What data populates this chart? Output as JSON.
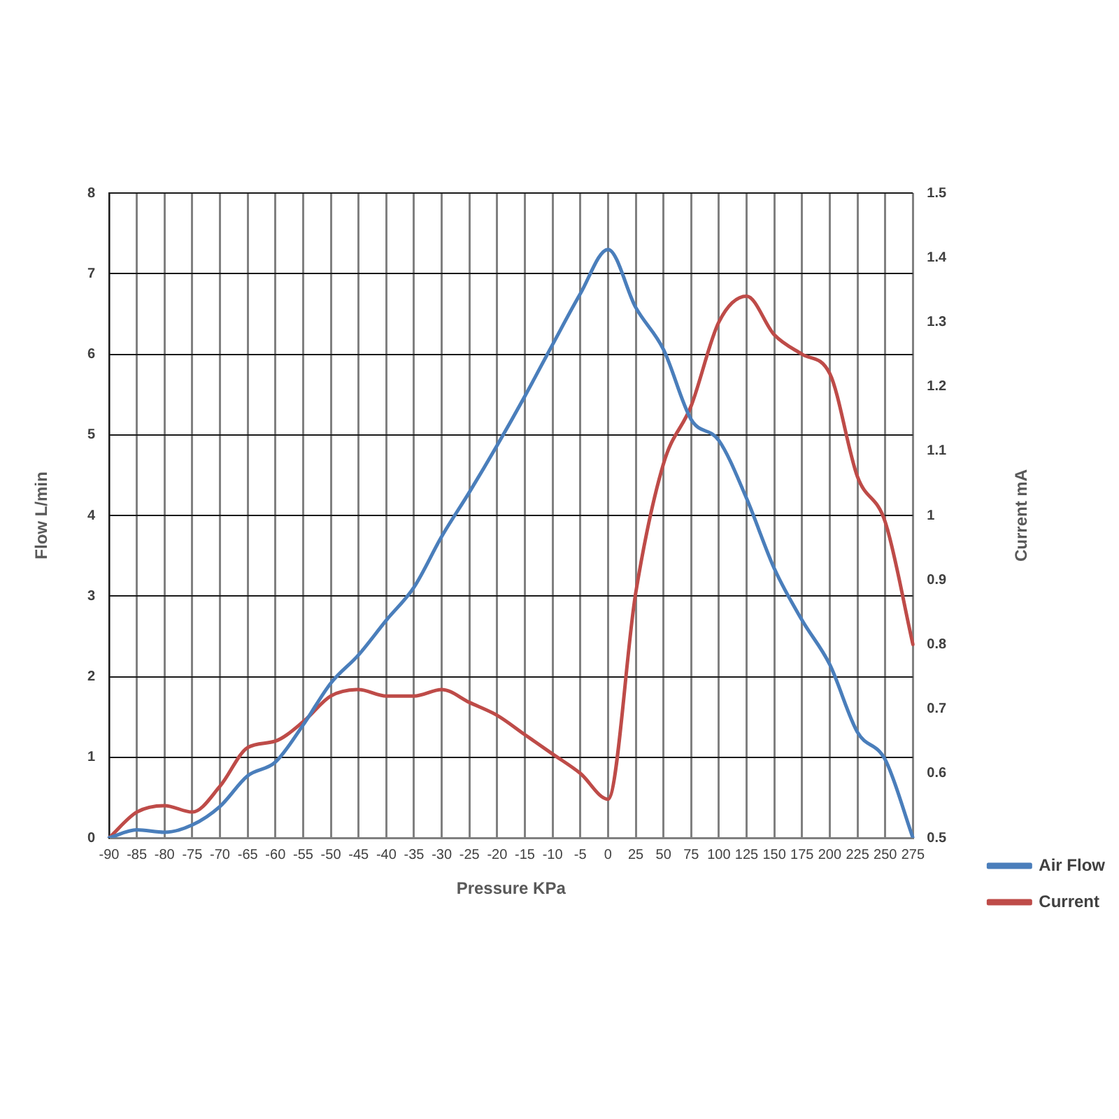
{
  "chart_data": {
    "type": "line",
    "xlabel": "Pressure KPa",
    "ylabel": "Flow L/min",
    "y2label": "Current mA",
    "categories": [
      "-90",
      "-85",
      "-80",
      "-75",
      "-70",
      "-65",
      "-60",
      "-55",
      "-50",
      "-45",
      "-40",
      "-35",
      "-30",
      "-25",
      "-20",
      "-15",
      "-10",
      "-5",
      "0",
      "25",
      "50",
      "75",
      "100",
      "125",
      "150",
      "175",
      "200",
      "225",
      "250",
      "275"
    ],
    "series": [
      {
        "name": "Air Flow",
        "color": "#4a7ebb",
        "values": [
          0,
          0.1,
          0.07,
          0.16,
          0.39,
          0.77,
          0.94,
          1.4,
          1.92,
          2.27,
          2.7,
          3.11,
          3.74,
          4.29,
          4.87,
          5.48,
          6.12,
          6.75,
          7.3,
          6.58,
          6.06,
          5.19,
          4.93,
          4.21,
          3.34,
          2.7,
          2.15,
          1.31,
          0.97,
          0
        ]
      },
      {
        "name": "Current",
        "color": "#be4b48",
        "axis": "y2",
        "values": [
          0.5,
          0.54,
          0.55,
          0.54,
          0.58,
          0.64,
          0.65,
          0.68,
          0.72,
          0.73,
          0.72,
          0.72,
          0.73,
          0.71,
          0.69,
          0.66,
          0.63,
          0.6,
          0.56,
          0.88,
          1.08,
          1.17,
          1.3,
          1.34,
          1.28,
          1.25,
          1.22,
          1.06,
          0.99,
          0.8
        ]
      }
    ],
    "ylim": [
      0,
      8
    ],
    "yticks": [
      0,
      1,
      2,
      3,
      4,
      5,
      6,
      7,
      8
    ],
    "y2lim": [
      0.5,
      1.5
    ],
    "y2ticks": [
      0.5,
      0.6,
      0.7,
      0.8,
      0.9,
      1,
      1.1,
      1.2,
      1.3,
      1.4,
      1.5
    ],
    "grid": true,
    "legend": "bottom right",
    "marker": "none",
    "line_style": "solid"
  }
}
